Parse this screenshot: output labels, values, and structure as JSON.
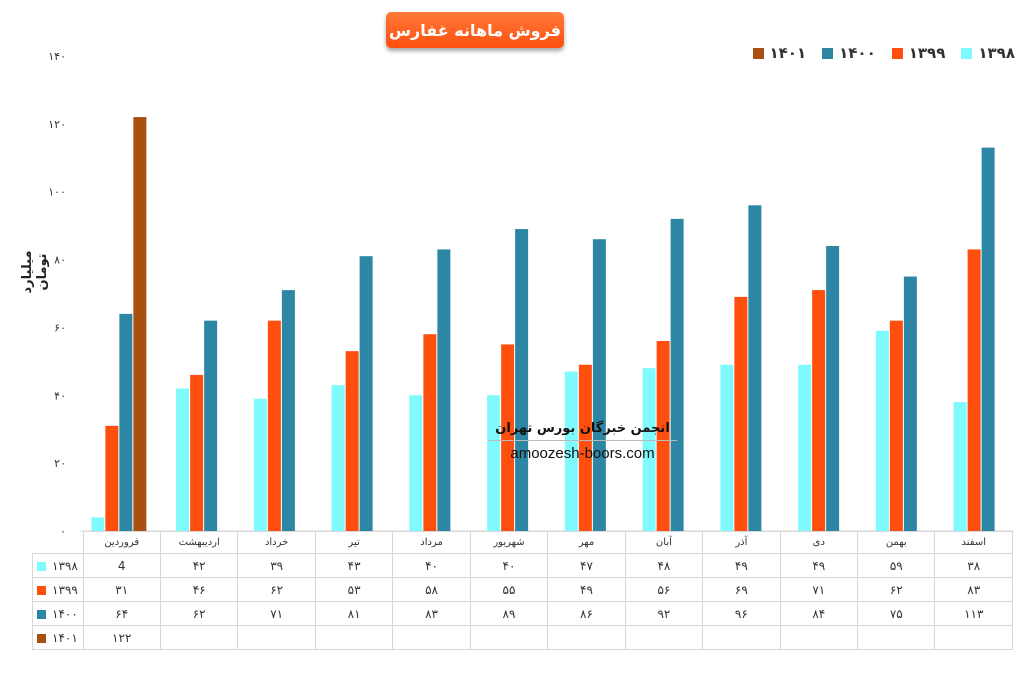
{
  "title": "فروش ماهانه غفارس",
  "ylabel": "میلیارد تومان",
  "watermark": {
    "line1": "انجمن خبرگان بورس تهران",
    "line2": "amoozesh-boors.com"
  },
  "ytick_labels": [
    "۰",
    "۲۰",
    "۴۰",
    "۶۰",
    "۸۰",
    "۱۰۰",
    "۱۲۰",
    "۱۴۰"
  ],
  "chart_data": {
    "type": "bar",
    "title": "فروش ماهانه غفارس",
    "ylabel": "میلیارد تومان",
    "xlabel": "",
    "ylim": [
      0,
      140
    ],
    "grid": false,
    "legend": "top-right",
    "categories": [
      "فروردین",
      "اردیبهشت",
      "خرداد",
      "تیر",
      "مرداد",
      "شهریور",
      "مهر",
      "آبان",
      "آذر",
      "دی",
      "بهمن",
      "اسفند"
    ],
    "series": [
      {
        "name": "۱۳۹۸",
        "color": "#7ffaff",
        "values": [
          4,
          42,
          39,
          43,
          40,
          40,
          47,
          48,
          49,
          49,
          59,
          38
        ],
        "labels": [
          "4",
          "۴۲",
          "۳۹",
          "۴۳",
          "۴۰",
          "۴۰",
          "۴۷",
          "۴۸",
          "۴۹",
          "۴۹",
          "۵۹",
          "۳۸"
        ]
      },
      {
        "name": "۱۳۹۹",
        "color": "#ff4f0f",
        "values": [
          31,
          46,
          62,
          53,
          58,
          55,
          49,
          56,
          69,
          71,
          62,
          83
        ],
        "labels": [
          "۳۱",
          "۴۶",
          "۶۲",
          "۵۳",
          "۵۸",
          "۵۵",
          "۴۹",
          "۵۶",
          "۶۹",
          "۷۱",
          "۶۲",
          "۸۳"
        ]
      },
      {
        "name": "۱۴۰۰",
        "color": "#2d87a4",
        "values": [
          64,
          62,
          71,
          81,
          83,
          89,
          86,
          92,
          96,
          84,
          75,
          113
        ],
        "labels": [
          "۶۴",
          "۶۲",
          "۷۱",
          "۸۱",
          "۸۳",
          "۸۹",
          "۸۶",
          "۹۲",
          "۹۶",
          "۸۴",
          "۷۵",
          "۱۱۳"
        ]
      },
      {
        "name": "۱۴۰۱",
        "color": "#a94f12",
        "values": [
          122,
          null,
          null,
          null,
          null,
          null,
          null,
          null,
          null,
          null,
          null,
          null
        ],
        "labels": [
          "۱۲۲",
          "",
          "",
          "",
          "",
          "",
          "",
          "",
          "",
          "",
          "",
          ""
        ]
      }
    ]
  }
}
